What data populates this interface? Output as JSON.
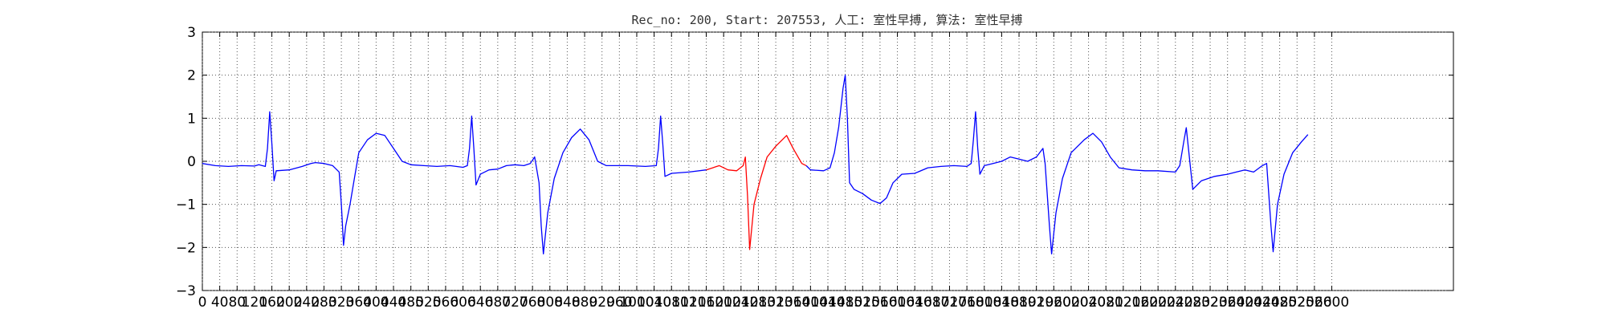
{
  "chart_data": {
    "type": "line",
    "title": "Rec_no: 200, Start: 207553, 人工: 室性早搏, 算法: 室性早搏",
    "xlabel": "",
    "ylabel": "",
    "xlim": [
      0,
      2880
    ],
    "ylim": [
      -3,
      3
    ],
    "grid": true,
    "x_ticks": [
      0,
      40,
      80,
      120,
      160,
      200,
      240,
      280,
      320,
      360,
      400,
      440,
      480,
      520,
      560,
      600,
      640,
      680,
      720,
      760,
      800,
      840,
      880,
      920,
      960,
      1000,
      1040,
      1080,
      1120,
      1160,
      1200,
      1240,
      1280,
      1320,
      1360,
      1400,
      1440,
      1480,
      1520,
      1560,
      1600,
      1640,
      1680,
      1720,
      1760,
      1800,
      1840,
      1880,
      1920,
      1960,
      2000,
      2040,
      2080,
      2120,
      2160,
      2200,
      2240,
      2280,
      2320,
      2360,
      2400,
      2440,
      2480,
      2520,
      2560,
      2600
    ],
    "y_ticks": [
      -3,
      -2,
      -1,
      0,
      1,
      2,
      3
    ],
    "series": [
      {
        "color": "#0000ff",
        "points": [
          [
            0,
            -0.05
          ],
          [
            30,
            -0.1
          ],
          [
            60,
            -0.12
          ],
          [
            90,
            -0.1
          ],
          [
            120,
            -0.11
          ],
          [
            130,
            -0.08
          ],
          [
            145,
            -0.12
          ],
          [
            150,
            0.3
          ],
          [
            155,
            1.15
          ],
          [
            160,
            0.4
          ],
          [
            165,
            -0.45
          ],
          [
            170,
            -0.22
          ],
          [
            200,
            -0.2
          ],
          [
            230,
            -0.12
          ],
          [
            250,
            -0.05
          ],
          [
            260,
            -0.03
          ],
          [
            280,
            -0.05
          ],
          [
            300,
            -0.1
          ],
          [
            315,
            -0.25
          ],
          [
            320,
            -1.0
          ],
          [
            325,
            -1.95
          ],
          [
            330,
            -1.5
          ],
          [
            340,
            -1.0
          ],
          [
            350,
            -0.4
          ],
          [
            360,
            0.2
          ],
          [
            380,
            0.5
          ],
          [
            400,
            0.65
          ],
          [
            420,
            0.6
          ],
          [
            440,
            0.3
          ],
          [
            460,
            0.0
          ],
          [
            480,
            -0.08
          ],
          [
            510,
            -0.1
          ],
          [
            540,
            -0.12
          ],
          [
            570,
            -0.1
          ],
          [
            600,
            -0.14
          ],
          [
            610,
            -0.1
          ],
          [
            615,
            0.3
          ],
          [
            620,
            1.05
          ],
          [
            625,
            0.3
          ],
          [
            630,
            -0.55
          ],
          [
            640,
            -0.3
          ],
          [
            660,
            -0.2
          ],
          [
            680,
            -0.18
          ],
          [
            700,
            -0.1
          ],
          [
            720,
            -0.08
          ],
          [
            740,
            -0.1
          ],
          [
            755,
            -0.05
          ],
          [
            765,
            0.1
          ],
          [
            775,
            -0.5
          ],
          [
            780,
            -1.5
          ],
          [
            785,
            -2.15
          ],
          [
            795,
            -1.2
          ],
          [
            810,
            -0.4
          ],
          [
            830,
            0.2
          ],
          [
            850,
            0.55
          ],
          [
            870,
            0.75
          ],
          [
            890,
            0.5
          ],
          [
            910,
            0.0
          ],
          [
            930,
            -0.1
          ],
          [
            980,
            -0.1
          ],
          [
            1020,
            -0.12
          ],
          [
            1045,
            -0.1
          ],
          [
            1050,
            0.3
          ],
          [
            1055,
            1.05
          ],
          [
            1060,
            0.4
          ],
          [
            1065,
            -0.35
          ],
          [
            1080,
            -0.28
          ],
          [
            1120,
            -0.25
          ],
          [
            1160,
            -0.2
          ]
        ]
      },
      {
        "color": "#ff0000",
        "points": [
          [
            1160,
            -0.2
          ],
          [
            1190,
            -0.1
          ],
          [
            1210,
            -0.2
          ],
          [
            1230,
            -0.22
          ],
          [
            1245,
            -0.1
          ],
          [
            1250,
            0.1
          ],
          [
            1255,
            -0.8
          ],
          [
            1260,
            -2.05
          ],
          [
            1270,
            -1.0
          ],
          [
            1285,
            -0.4
          ],
          [
            1300,
            0.1
          ],
          [
            1320,
            0.35
          ],
          [
            1345,
            0.6
          ],
          [
            1360,
            0.3
          ],
          [
            1380,
            -0.05
          ],
          [
            1390,
            -0.1
          ]
        ]
      },
      {
        "color": "#0000ff",
        "points": [
          [
            1390,
            -0.1
          ],
          [
            1400,
            -0.2
          ],
          [
            1430,
            -0.22
          ],
          [
            1445,
            -0.15
          ],
          [
            1455,
            0.2
          ],
          [
            1465,
            0.8
          ],
          [
            1475,
            1.7
          ],
          [
            1480,
            2.0
          ],
          [
            1485,
            1.0
          ],
          [
            1490,
            -0.5
          ],
          [
            1500,
            -0.65
          ],
          [
            1520,
            -0.75
          ],
          [
            1540,
            -0.9
          ],
          [
            1560,
            -0.98
          ],
          [
            1575,
            -0.85
          ],
          [
            1590,
            -0.5
          ],
          [
            1610,
            -0.3
          ],
          [
            1640,
            -0.28
          ],
          [
            1670,
            -0.15
          ],
          [
            1700,
            -0.12
          ],
          [
            1730,
            -0.1
          ],
          [
            1760,
            -0.12
          ],
          [
            1770,
            -0.05
          ],
          [
            1775,
            0.5
          ],
          [
            1780,
            1.15
          ],
          [
            1785,
            0.3
          ],
          [
            1790,
            -0.3
          ],
          [
            1800,
            -0.1
          ],
          [
            1820,
            -0.05
          ],
          [
            1840,
            0.0
          ],
          [
            1860,
            0.1
          ],
          [
            1880,
            0.05
          ],
          [
            1900,
            0.0
          ],
          [
            1920,
            0.1
          ],
          [
            1935,
            0.3
          ],
          [
            1940,
            -0.05
          ],
          [
            1950,
            -1.5
          ],
          [
            1955,
            -2.15
          ],
          [
            1965,
            -1.2
          ],
          [
            1980,
            -0.4
          ],
          [
            2000,
            0.2
          ],
          [
            2030,
            0.5
          ],
          [
            2050,
            0.65
          ],
          [
            2070,
            0.45
          ],
          [
            2090,
            0.1
          ],
          [
            2110,
            -0.15
          ],
          [
            2140,
            -0.2
          ],
          [
            2170,
            -0.22
          ],
          [
            2200,
            -0.22
          ],
          [
            2240,
            -0.25
          ],
          [
            2250,
            -0.1
          ],
          [
            2260,
            0.5
          ],
          [
            2265,
            0.78
          ],
          [
            2270,
            0.3
          ],
          [
            2280,
            -0.65
          ],
          [
            2300,
            -0.45
          ],
          [
            2330,
            -0.35
          ],
          [
            2360,
            -0.3
          ],
          [
            2380,
            -0.25
          ],
          [
            2400,
            -0.2
          ],
          [
            2420,
            -0.25
          ],
          [
            2440,
            -0.1
          ],
          [
            2450,
            -0.05
          ],
          [
            2460,
            -1.5
          ],
          [
            2465,
            -2.1
          ],
          [
            2475,
            -1.0
          ],
          [
            2490,
            -0.3
          ],
          [
            2510,
            0.2
          ],
          [
            2530,
            0.45
          ],
          [
            2545,
            0.62
          ]
        ]
      }
    ]
  }
}
